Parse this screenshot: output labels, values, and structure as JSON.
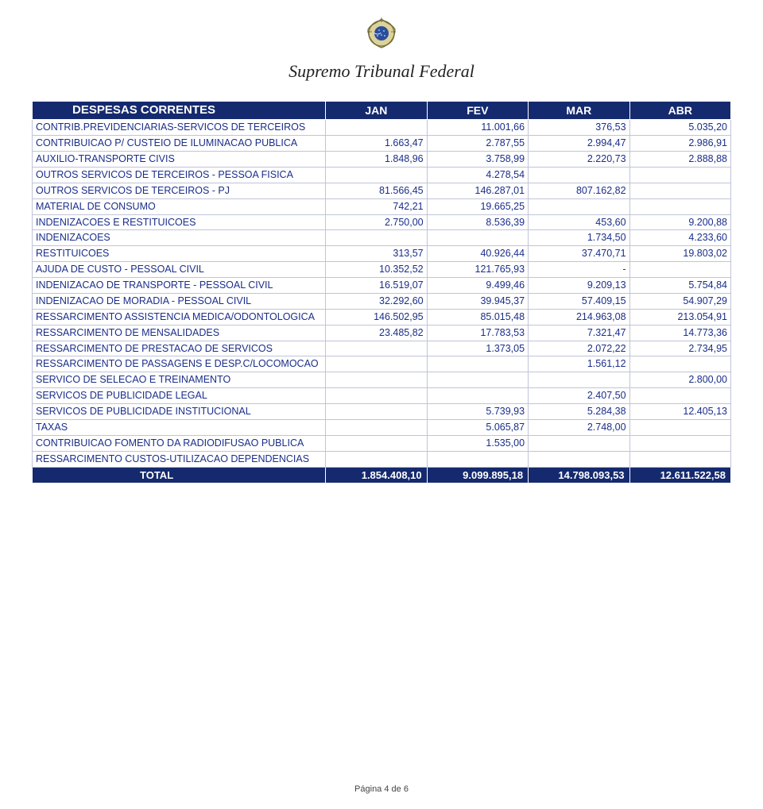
{
  "style": {
    "header_bg": "#152a6e",
    "header_fg": "#ffffff",
    "data_fg": "#1a2e8a",
    "grid_color": "#c0c4d8",
    "background": "#ffffff"
  },
  "title": "Supremo Tribunal Federal",
  "footer": "Página 4 de 6",
  "table": {
    "header": {
      "label": "DESPESAS CORRENTES",
      "cols": [
        "JAN",
        "FEV",
        "MAR",
        "ABR"
      ]
    },
    "rows": [
      {
        "label": "CONTRIB.PREVIDENCIARIAS-SERVICOS DE TERCEIROS",
        "vals": [
          "",
          "11.001,66",
          "376,53",
          "5.035,20"
        ]
      },
      {
        "label": "CONTRIBUICAO P/ CUSTEIO DE ILUMINACAO PUBLICA",
        "vals": [
          "1.663,47",
          "2.787,55",
          "2.994,47",
          "2.986,91"
        ]
      },
      {
        "label": "AUXILIO-TRANSPORTE CIVIS",
        "vals": [
          "1.848,96",
          "3.758,99",
          "2.220,73",
          "2.888,88"
        ]
      },
      {
        "label": "OUTROS SERVICOS DE TERCEIROS - PESSOA FISICA",
        "vals": [
          "",
          "4.278,54",
          "",
          ""
        ]
      },
      {
        "label": "OUTROS SERVICOS DE TERCEIROS - PJ",
        "vals": [
          "81.566,45",
          "146.287,01",
          "807.162,82",
          ""
        ]
      },
      {
        "label": "MATERIAL DE CONSUMO",
        "vals": [
          "742,21",
          "19.665,25",
          "",
          ""
        ]
      },
      {
        "label": "INDENIZACOES E RESTITUICOES",
        "vals": [
          "2.750,00",
          "8.536,39",
          "453,60",
          "9.200,88"
        ]
      },
      {
        "label": "INDENIZACOES",
        "vals": [
          "",
          "",
          "1.734,50",
          "4.233,60"
        ]
      },
      {
        "label": "RESTITUICOES",
        "vals": [
          "313,57",
          "40.926,44",
          "37.470,71",
          "19.803,02"
        ]
      },
      {
        "label": "AJUDA DE CUSTO - PESSOAL CIVIL",
        "vals": [
          "10.352,52",
          "121.765,93",
          "-",
          ""
        ]
      },
      {
        "label": "INDENIZACAO DE TRANSPORTE - PESSOAL CIVIL",
        "vals": [
          "16.519,07",
          "9.499,46",
          "9.209,13",
          "5.754,84"
        ]
      },
      {
        "label": "INDENIZACAO DE MORADIA - PESSOAL CIVIL",
        "vals": [
          "32.292,60",
          "39.945,37",
          "57.409,15",
          "54.907,29"
        ]
      },
      {
        "label": "RESSARCIMENTO ASSISTENCIA MEDICA/ODONTOLOGICA",
        "vals": [
          "146.502,95",
          "85.015,48",
          "214.963,08",
          "213.054,91"
        ]
      },
      {
        "label": "RESSARCIMENTO DE MENSALIDADES",
        "vals": [
          "23.485,82",
          "17.783,53",
          "7.321,47",
          "14.773,36"
        ]
      },
      {
        "label": "RESSARCIMENTO DE PRESTACAO DE SERVICOS",
        "vals": [
          "",
          "1.373,05",
          "2.072,22",
          "2.734,95"
        ]
      },
      {
        "label": "RESSARCIMENTO DE PASSAGENS E DESP.C/LOCOMOCAO",
        "vals": [
          "",
          "",
          "1.561,12",
          ""
        ]
      },
      {
        "label": "SERVICO DE SELECAO E TREINAMENTO",
        "vals": [
          "",
          "",
          "",
          "2.800,00"
        ]
      },
      {
        "label": "SERVICOS DE PUBLICIDADE LEGAL",
        "vals": [
          "",
          "",
          "2.407,50",
          ""
        ]
      },
      {
        "label": "SERVICOS DE PUBLICIDADE INSTITUCIONAL",
        "vals": [
          "",
          "5.739,93",
          "5.284,38",
          "12.405,13"
        ]
      },
      {
        "label": "TAXAS",
        "vals": [
          "",
          "5.065,87",
          "2.748,00",
          ""
        ]
      },
      {
        "label": "CONTRIBUICAO  FOMENTO DA RADIODIFUSAO PUBLICA",
        "vals": [
          "",
          "1.535,00",
          "",
          ""
        ]
      },
      {
        "label": "RESSARCIMENTO CUSTOS-UTILIZACAO DEPENDENCIAS",
        "vals": [
          "",
          "",
          "",
          ""
        ]
      }
    ],
    "total": {
      "label": "TOTAL",
      "vals": [
        "1.854.408,10",
        "9.099.895,18",
        "14.798.093,53",
        "12.611.522,58"
      ]
    }
  }
}
